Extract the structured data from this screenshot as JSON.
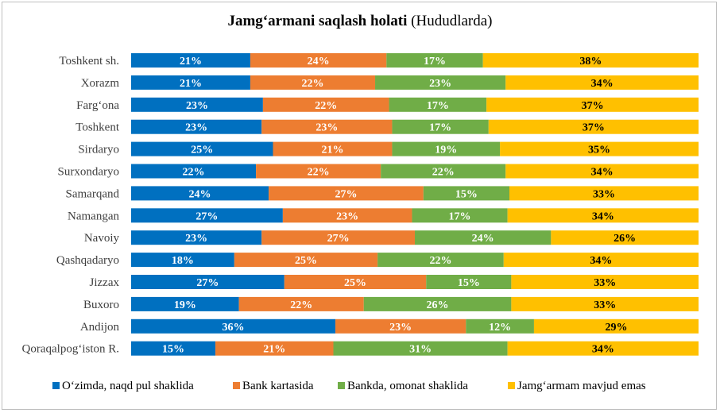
{
  "chart_data": {
    "type": "bar",
    "orientation": "horizontal-stacked",
    "title": "Jamg‘armani saqlash holati",
    "subtitle": "(Hududlarda)",
    "categories": [
      "Toshkent sh.",
      "Xorazm",
      "Farg‘ona",
      "Toshkent",
      "Sirdaryo",
      "Surxondaryo",
      "Samarqand",
      "Namangan",
      "Navoiy",
      "Qashqadaryo",
      "Jizzax",
      "Buxoro",
      "Andijon",
      "Qoraqalpog‘iston R."
    ],
    "series": [
      {
        "name": "O‘zimda, naqd pul shaklida",
        "color": "#0070c0",
        "label_color": "#ffffff",
        "values": [
          21,
          21,
          23,
          23,
          25,
          22,
          24,
          27,
          23,
          18,
          27,
          19,
          36,
          15
        ]
      },
      {
        "name": "Bank kartasida",
        "color": "#ed7d31",
        "label_color": "#ffffff",
        "values": [
          24,
          22,
          22,
          23,
          21,
          22,
          27,
          23,
          27,
          25,
          25,
          22,
          23,
          21
        ]
      },
      {
        "name": "Bankda, omonat shaklida",
        "color": "#70ad47",
        "label_color": "#ffffff",
        "values": [
          17,
          23,
          17,
          17,
          19,
          22,
          15,
          17,
          24,
          22,
          15,
          26,
          12,
          31
        ]
      },
      {
        "name": "Jamg‘armam mavjud emas",
        "color": "#ffc000",
        "label_color": "#000000",
        "values": [
          38,
          34,
          37,
          37,
          35,
          34,
          33,
          34,
          26,
          34,
          33,
          33,
          29,
          34
        ]
      }
    ],
    "value_suffix": "%",
    "legend_position": "bottom",
    "grid": false
  }
}
